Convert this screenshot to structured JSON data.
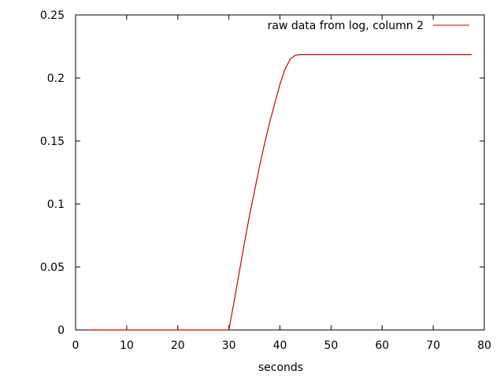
{
  "chart_data": {
    "type": "line",
    "title": "",
    "xlabel": "seconds",
    "ylabel": "",
    "xlim": [
      0,
      80
    ],
    "ylim": [
      0,
      0.25
    ],
    "xticks": [
      0,
      10,
      20,
      30,
      40,
      50,
      60,
      70,
      80
    ],
    "yticks": [
      0,
      0.05,
      0.1,
      0.15,
      0.2,
      0.25
    ],
    "xtick_labels": [
      "0",
      "10",
      "20",
      "30",
      "40",
      "50",
      "60",
      "70",
      "80"
    ],
    "ytick_labels": [
      "0",
      "0.05",
      "0.1",
      "0.15",
      "0.2",
      "0.25"
    ],
    "grid": false,
    "legend_position": "top-right",
    "series": [
      {
        "name": "raw data from log, column 2",
        "color": "#cc0000",
        "x": [
          3,
          10,
          20,
          30,
          31,
          32,
          33,
          34,
          35,
          36,
          37,
          38,
          39,
          40,
          41,
          42,
          43,
          44,
          50,
          60,
          70,
          77.5
        ],
        "y": [
          0,
          0,
          0,
          0,
          0.022,
          0.045,
          0.068,
          0.09,
          0.11,
          0.13,
          0.148,
          0.165,
          0.18,
          0.195,
          0.207,
          0.215,
          0.218,
          0.2185,
          0.2185,
          0.2185,
          0.2185,
          0.2185
        ]
      }
    ]
  }
}
